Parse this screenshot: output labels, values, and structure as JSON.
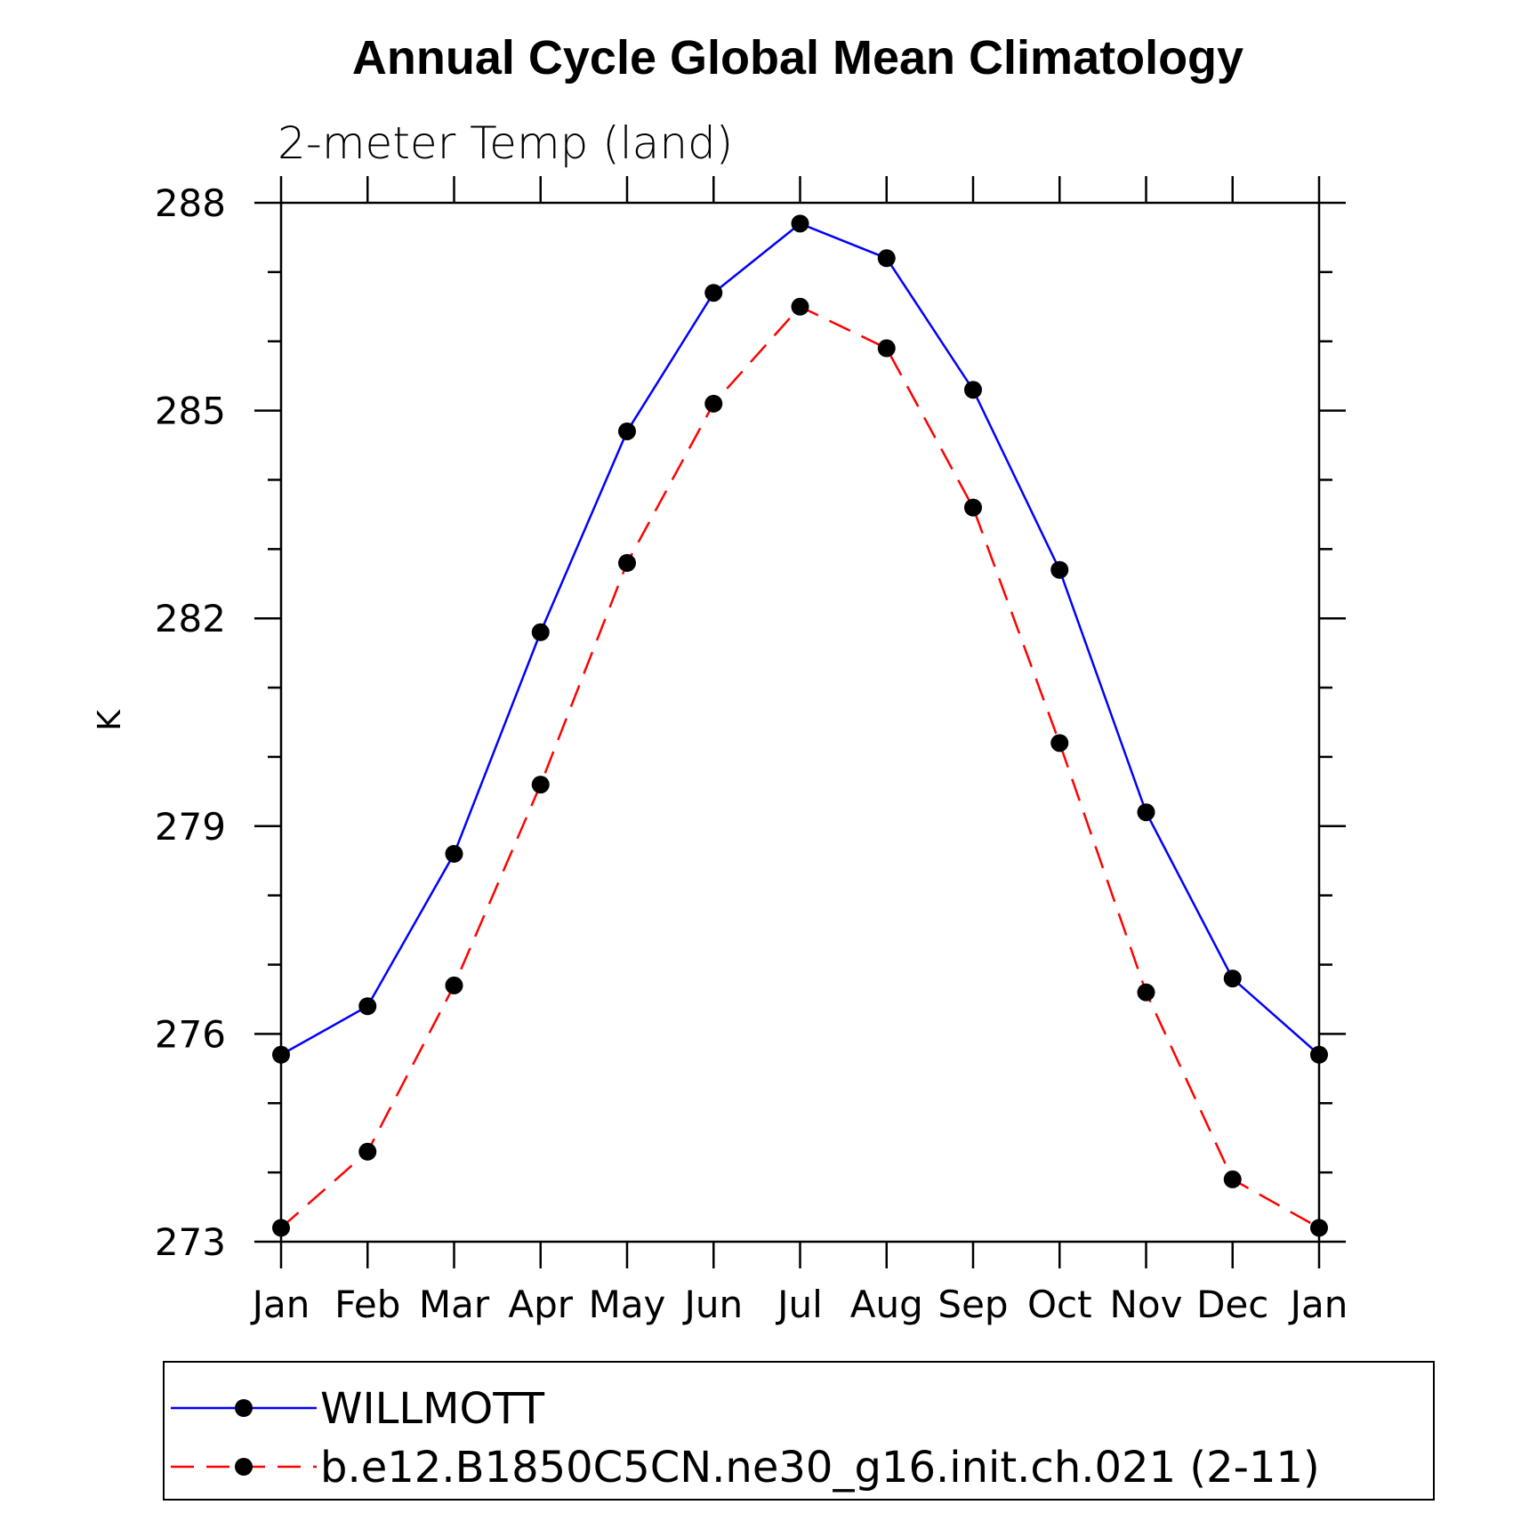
{
  "chart_data": {
    "type": "line",
    "title": "Annual Cycle Global Mean Climatology",
    "subtitle": "2-meter Temp (land)",
    "xlabel": "",
    "ylabel": "K",
    "categories": [
      "Jan",
      "Feb",
      "Mar",
      "Apr",
      "May",
      "Jun",
      "Jul",
      "Aug",
      "Sep",
      "Oct",
      "Nov",
      "Dec",
      "Jan"
    ],
    "ylim": [
      273,
      288
    ],
    "yticks": [
      273,
      276,
      279,
      282,
      285,
      288
    ],
    "yminor_step": 1,
    "grid": false,
    "legend_position": "bottom",
    "series": [
      {
        "name": "WILLMOTT",
        "color": "#0000ff",
        "dash": "solid",
        "marker": "filled-circle",
        "values": [
          275.7,
          276.4,
          278.6,
          281.8,
          284.7,
          286.7,
          287.7,
          287.2,
          285.3,
          282.7,
          279.2,
          276.8,
          275.7
        ]
      },
      {
        "name": "b.e12.B1850C5CN.ne30_g16.init.ch.021 (2-11)",
        "color": "#ff0000",
        "dash": "dashed",
        "marker": "filled-circle",
        "values": [
          273.2,
          274.3,
          276.7,
          279.6,
          282.8,
          285.1,
          286.5,
          285.9,
          283.6,
          280.2,
          276.6,
          273.9,
          273.2
        ]
      }
    ]
  }
}
